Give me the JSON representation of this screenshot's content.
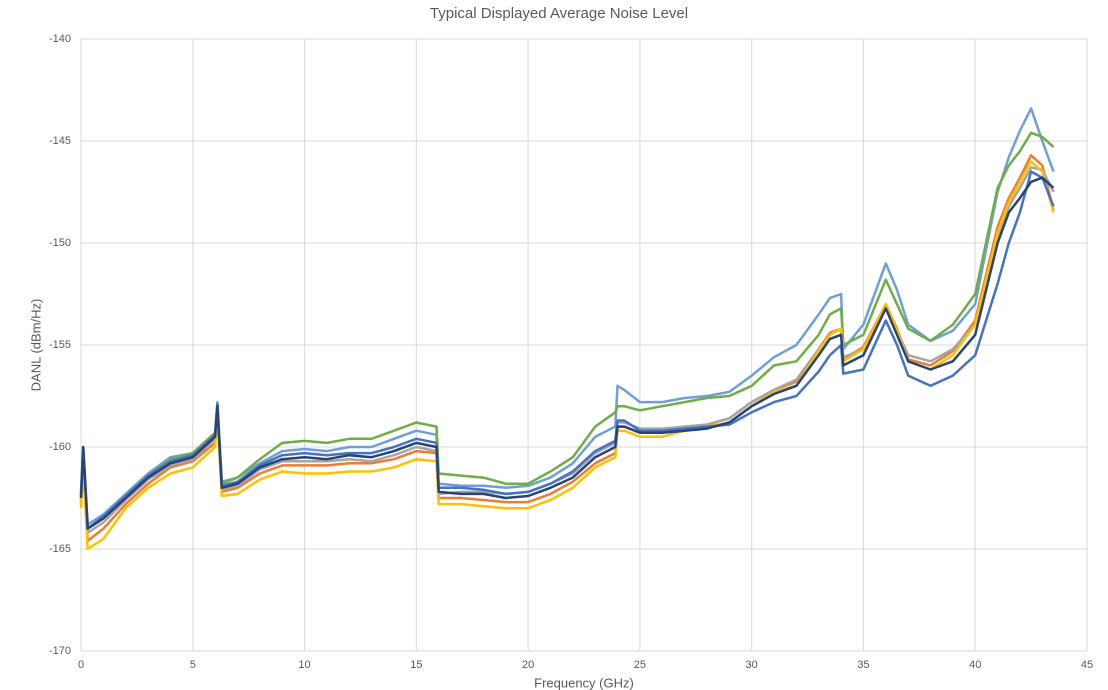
{
  "chart_data": {
    "type": "line",
    "title": "Typical Displayed Average Noise Level",
    "x_label": "Frequency (GHz)",
    "y_label": "DANL (dBm/Hz)",
    "xlim": [
      0,
      45
    ],
    "xticks": [
      0,
      5,
      10,
      15,
      20,
      25,
      30,
      35,
      40,
      45
    ],
    "ylim": [
      -170,
      -140
    ],
    "yticks": [
      -170,
      -165,
      -160,
      -155,
      -150,
      -145,
      -140
    ],
    "grid": true,
    "x": [
      0,
      0.1,
      0.3,
      1,
      2,
      3,
      4,
      5,
      6,
      6.1,
      6.3,
      7,
      8,
      9,
      10,
      11,
      12,
      13,
      14,
      15,
      15.9,
      16,
      17,
      18,
      19,
      20,
      21,
      22,
      23,
      23.9,
      24,
      24.3,
      25,
      26,
      27,
      28,
      29,
      30,
      31,
      32,
      33,
      33.5,
      34,
      34.1,
      35,
      36,
      36.5,
      37,
      38,
      39,
      40,
      41,
      41.5,
      42,
      42.5,
      43,
      43.5
    ],
    "series": [
      {
        "color": "#6f9fd8",
        "values": [
          -162.2,
          -160,
          -163.8,
          -163.3,
          -162.3,
          -161.3,
          -160.5,
          -160.3,
          -159.3,
          -157.8,
          -161.7,
          -161.5,
          -160.8,
          -160.2,
          -160.1,
          -160.2,
          -160,
          -160,
          -159.6,
          -159.2,
          -159.4,
          -161.8,
          -161.9,
          -161.9,
          -162,
          -161.9,
          -161.5,
          -160.8,
          -159.5,
          -159,
          -157,
          -157.2,
          -157.8,
          -157.8,
          -157.6,
          -157.5,
          -157.3,
          -156.5,
          -155.6,
          -155,
          -153.5,
          -152.7,
          -152.5,
          -155.2,
          -154,
          -151,
          -152.3,
          -154,
          -154.8,
          -154.3,
          -153,
          -147.5,
          -145.8,
          -144.5,
          -143.4,
          -145,
          -146.5
        ]
      },
      {
        "color": "#70ad47",
        "values": [
          -162.3,
          -160.2,
          -164,
          -163.5,
          -162.4,
          -161.4,
          -160.6,
          -160.3,
          -159.3,
          -157.9,
          -161.8,
          -161.5,
          -160.6,
          -159.8,
          -159.7,
          -159.8,
          -159.6,
          -159.6,
          -159.2,
          -158.8,
          -159,
          -161.3,
          -161.4,
          -161.5,
          -161.8,
          -161.8,
          -161.2,
          -160.5,
          -159,
          -158.3,
          -158,
          -158,
          -158.2,
          -158,
          -157.8,
          -157.6,
          -157.5,
          -157,
          -156,
          -155.8,
          -154.5,
          -153.5,
          -153.2,
          -155,
          -154.5,
          -151.8,
          -153,
          -154.2,
          -154.8,
          -154,
          -152.5,
          -147.3,
          -146.2,
          -145.5,
          -144.6,
          -144.8,
          -145.3
        ]
      },
      {
        "color": "#ed7d31",
        "values": [
          -162.8,
          -160.5,
          -164.6,
          -164,
          -162.8,
          -161.8,
          -161,
          -160.7,
          -159.8,
          -158.2,
          -162.2,
          -162,
          -161.3,
          -160.9,
          -160.9,
          -160.9,
          -160.8,
          -160.8,
          -160.6,
          -160.2,
          -160.3,
          -162.5,
          -162.5,
          -162.6,
          -162.7,
          -162.7,
          -162.3,
          -161.7,
          -160.8,
          -160.3,
          -159,
          -159,
          -159.3,
          -159.3,
          -159,
          -158.9,
          -158.6,
          -157.8,
          -157.2,
          -156.8,
          -155.2,
          -154.4,
          -154.2,
          -155.7,
          -155.1,
          -153,
          -154.2,
          -155.7,
          -156,
          -155.3,
          -153.8,
          -149.2,
          -147.8,
          -146.8,
          -145.7,
          -146.2,
          -148.4
        ]
      },
      {
        "color": "#a5a5a5",
        "values": [
          -162.6,
          -160.2,
          -164.2,
          -163.7,
          -162.6,
          -161.6,
          -160.9,
          -160.6,
          -159.6,
          -158.1,
          -162.1,
          -161.9,
          -161.1,
          -160.7,
          -160.7,
          -160.7,
          -160.6,
          -160.7,
          -160.4,
          -160,
          -160.2,
          -162.3,
          -162.2,
          -162.2,
          -162.3,
          -162.2,
          -161.8,
          -161.3,
          -160.3,
          -159.8,
          -158.8,
          -158.8,
          -159.1,
          -159.1,
          -159,
          -158.9,
          -158.6,
          -157.8,
          -157.2,
          -156.7,
          -155.2,
          -154.5,
          -154.2,
          -155.6,
          -155.2,
          -153.1,
          -154.3,
          -155.5,
          -155.8,
          -155.2,
          -154,
          -149.7,
          -148.2,
          -147.3,
          -146.3,
          -146.4,
          -147.5
        ]
      },
      {
        "color": "#ffc000",
        "values": [
          -163,
          -161,
          -165,
          -164.5,
          -163,
          -162,
          -161.3,
          -161,
          -160,
          -158.5,
          -162.4,
          -162.3,
          -161.6,
          -161.2,
          -161.3,
          -161.3,
          -161.2,
          -161.2,
          -161,
          -160.6,
          -160.7,
          -162.8,
          -162.8,
          -162.9,
          -163,
          -163,
          -162.6,
          -162,
          -161,
          -160.5,
          -159.2,
          -159.2,
          -159.5,
          -159.5,
          -159.2,
          -159,
          -158.8,
          -158,
          -157.3,
          -157,
          -155.3,
          -154.5,
          -154.2,
          -155.8,
          -155.2,
          -153,
          -154.3,
          -155.8,
          -156.2,
          -155.5,
          -154,
          -149.5,
          -148,
          -147,
          -146,
          -146.5,
          -148.5
        ]
      },
      {
        "color": "#4472c4",
        "values": [
          -162.4,
          -160,
          -164,
          -163.4,
          -162.4,
          -161.4,
          -160.7,
          -160.4,
          -159.4,
          -157.9,
          -161.9,
          -161.7,
          -160.9,
          -160.4,
          -160.3,
          -160.4,
          -160.3,
          -160.3,
          -160,
          -159.6,
          -159.8,
          -162,
          -162,
          -162.1,
          -162.3,
          -162.2,
          -161.8,
          -161.2,
          -160.2,
          -159.7,
          -158.7,
          -158.7,
          -159.2,
          -159.2,
          -159.1,
          -159,
          -158.9,
          -158.3,
          -157.8,
          -157.5,
          -156.3,
          -155.5,
          -155,
          -156.4,
          -156.2,
          -153.8,
          -155,
          -156.5,
          -157,
          -156.5,
          -155.5,
          -152,
          -150,
          -148.5,
          -146.5,
          -146.8,
          -148.2
        ]
      },
      {
        "color": "#264478",
        "values": [
          -162.5,
          -160,
          -164,
          -163.5,
          -162.5,
          -161.5,
          -160.8,
          -160.5,
          -159.5,
          -158,
          -162,
          -161.8,
          -161,
          -160.6,
          -160.5,
          -160.6,
          -160.4,
          -160.5,
          -160.2,
          -159.8,
          -160,
          -162.2,
          -162.3,
          -162.3,
          -162.5,
          -162.4,
          -162,
          -161.5,
          -160.5,
          -160,
          -159,
          -159,
          -159.3,
          -159.3,
          -159.2,
          -159.1,
          -158.8,
          -158,
          -157.4,
          -157,
          -155.5,
          -154.7,
          -154.5,
          -156,
          -155.5,
          -153.2,
          -154.5,
          -155.8,
          -156.2,
          -155.8,
          -154.5,
          -150,
          -148.5,
          -147.8,
          -147,
          -146.8,
          -147.3
        ]
      }
    ]
  }
}
